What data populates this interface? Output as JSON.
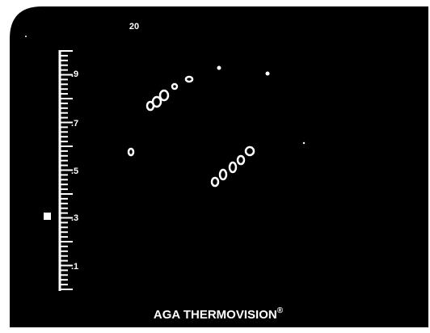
{
  "screen": {
    "top_label": "20",
    "scale_labels": [
      ".9",
      ".7",
      ".5",
      ".3",
      ".1"
    ],
    "footer": {
      "text": "AGA THERMOVISION",
      "mark": "®"
    }
  }
}
